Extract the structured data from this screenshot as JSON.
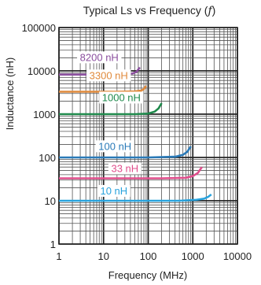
{
  "chart_data": {
    "type": "line",
    "title": "Typical Ls vs Frequency (",
    "title_symbol": "f",
    "title_suffix": ")",
    "xlabel": "Frequency (MHz)",
    "ylabel": "Inductance (nH)",
    "xscale": "log",
    "yscale": "log",
    "xlim": [
      1,
      10000
    ],
    "ylim": [
      1,
      100000
    ],
    "x_tick_labels": [
      "1",
      "10",
      "100",
      "1000",
      "10000"
    ],
    "y_tick_labels": [
      "1",
      "10",
      "100",
      "1000",
      "10000",
      "100000"
    ],
    "grid": true,
    "legend": "inline labels on curves",
    "series": [
      {
        "name": "8200 nH",
        "color": "#8a4e9e",
        "label_at": [
          8,
          17000
        ],
        "points": [
          [
            1,
            8200
          ],
          [
            10,
            8200
          ],
          [
            30,
            8300
          ],
          [
            45,
            8700
          ],
          [
            55,
            9600
          ],
          [
            65,
            12000
          ]
        ]
      },
      {
        "name": "3300 nH",
        "color": "#e08a3c",
        "label_at": [
          13,
          6500
        ],
        "points": [
          [
            1,
            3300
          ],
          [
            20,
            3300
          ],
          [
            50,
            3350
          ],
          [
            70,
            3500
          ],
          [
            80,
            3800
          ],
          [
            90,
            4500
          ]
        ]
      },
      {
        "name": "1000 nH",
        "color": "#1f8a4c",
        "label_at": [
          25,
          2000
        ],
        "points": [
          [
            1,
            1000
          ],
          [
            50,
            1000
          ],
          [
            100,
            1030
          ],
          [
            140,
            1150
          ],
          [
            170,
            1350
          ],
          [
            200,
            1800
          ]
        ]
      },
      {
        "name": "100 nH",
        "color": "#2a7ab8",
        "label_at": [
          18,
          150
        ],
        "points": [
          [
            1,
            100
          ],
          [
            100,
            100
          ],
          [
            400,
            104
          ],
          [
            600,
            115
          ],
          [
            750,
            135
          ],
          [
            900,
            180
          ]
        ]
      },
      {
        "name": "33 nH",
        "color": "#e04e8c",
        "label_at": [
          30,
          46
        ],
        "points": [
          [
            1,
            33
          ],
          [
            200,
            33
          ],
          [
            700,
            34
          ],
          [
            1000,
            37
          ],
          [
            1300,
            44
          ],
          [
            1600,
            60
          ]
        ]
      },
      {
        "name": "10 nH",
        "color": "#29a3dd",
        "label_at": [
          17,
          14
        ],
        "points": [
          [
            1,
            10
          ],
          [
            500,
            10
          ],
          [
            1200,
            10.5
          ],
          [
            1800,
            11.2
          ],
          [
            2200,
            12.3
          ],
          [
            2600,
            14
          ]
        ]
      }
    ]
  }
}
